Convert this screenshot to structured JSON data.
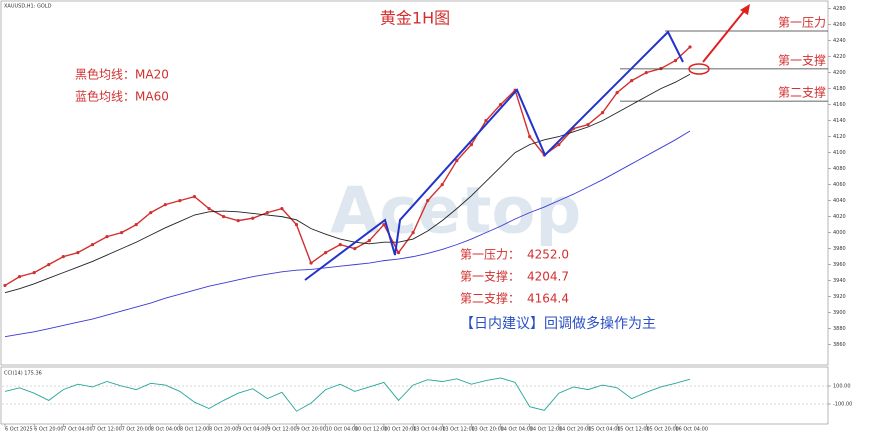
{
  "chart_data": [
    {
      "type": "line",
      "symbol": "XAUUSD,H1: GOLD",
      "title": "黄金1H图",
      "legend_texts": [
        "黑色均线：MA20",
        "蓝色均线：MA60"
      ],
      "advice": "【日内建议】回调做多操作为主",
      "categories": [
        "6 Oct 2025",
        null,
        "6 Oct 20:00",
        null,
        "7 Oct 04:00",
        null,
        "7 Oct 12:00",
        null,
        "7 Oct 20:00",
        null,
        "8 Oct 04:00",
        null,
        "8 Oct 12:00",
        null,
        "8 Oct 20:00",
        null,
        "9 Oct 04:00",
        null,
        "9 Oct 12:00",
        null,
        "9 Oct 20:00",
        null,
        "10 Oct 04:00",
        null,
        "10 Oct 12:00",
        null,
        "10 Oct 20:00",
        null,
        "13 Oct 04:00",
        null,
        "13 Oct 12:00",
        null,
        "13 Oct 20:00",
        null,
        "14 Oct 04:00",
        null,
        "14 Oct 12:00",
        null,
        "14 Oct 20:00",
        null,
        "15 Oct 04:00",
        null,
        "15 Oct 12:00",
        null,
        "15 Oct 20:00",
        null,
        "16 Oct 04:00",
        null
      ],
      "series": [
        {
          "color": "#d32f2f",
          "values": [
            3934,
            3945,
            3950,
            3960,
            3970,
            3975,
            3985,
            3995,
            4000,
            4010,
            4025,
            4035,
            4040,
            4045,
            4030,
            4020,
            4015,
            4018,
            4025,
            4030,
            4010,
            3962,
            3975,
            3985,
            3980,
            3990,
            4010,
            3975,
            4000,
            4040,
            4060,
            4090,
            4110,
            4140,
            4160,
            4178,
            4120,
            4097,
            4110,
            4130,
            4135,
            4150,
            4175,
            4190,
            4200,
            4205,
            4215,
            4232
          ]
        },
        {
          "color": "#222222",
          "values": [
            3925,
            3930,
            3936,
            3943,
            3950,
            3957,
            3964,
            3972,
            3980,
            3988,
            3997,
            4006,
            4014,
            4022,
            4026,
            4027,
            4026,
            4024,
            4022,
            4020,
            4016,
            4005,
            3998,
            3992,
            3988,
            3986,
            3988,
            3988,
            3992,
            4002,
            4015,
            4030,
            4046,
            4064,
            4082,
            4100,
            4110,
            4116,
            4120,
            4126,
            4132,
            4140,
            4150,
            4160,
            4170,
            4180,
            4188,
            4198
          ]
        },
        {
          "color": "#3a3ad6",
          "values": [
            3870,
            3873,
            3876,
            3880,
            3884,
            3888,
            3892,
            3897,
            3902,
            3907,
            3912,
            3918,
            3923,
            3928,
            3933,
            3937,
            3941,
            3945,
            3948,
            3951,
            3953,
            3954,
            3956,
            3958,
            3960,
            3962,
            3965,
            3967,
            3970,
            3974,
            3979,
            3985,
            3992,
            4000,
            4008,
            4017,
            4025,
            4032,
            4040,
            4048,
            4057,
            4066,
            4076,
            4086,
            4096,
            4106,
            4116,
            4127
          ]
        }
      ],
      "levels": [
        {
          "name": "第一压力",
          "caption": "第一压力：",
          "value": 4252,
          "value_label": "4252.0"
        },
        {
          "name": "第一支撑",
          "caption": "第一支撑：",
          "value": 4204.7,
          "value_label": "4204.7"
        },
        {
          "name": "第二支撑",
          "caption": "第二支撑：",
          "value": 4164.4,
          "value_label": "4164.4"
        }
      ],
      "ylim": [
        3850.8,
        4284.5
      ],
      "yticks": [
        3860,
        3880,
        3900,
        3920,
        3940,
        3960,
        3980,
        4000,
        4020,
        4040,
        4060,
        4080,
        4100,
        4120,
        4140,
        4160,
        4180,
        4200,
        4220,
        4240,
        4260,
        4280
      ]
    },
    {
      "type": "line",
      "title": "CCI(14) 175.36",
      "series": [
        {
          "color": "#26a69a",
          "values": [
            40,
            80,
            20,
            -60,
            60,
            120,
            90,
            150,
            100,
            60,
            130,
            110,
            40,
            -80,
            -150,
            -60,
            20,
            70,
            -40,
            30,
            -180,
            -90,
            60,
            120,
            40,
            90,
            140,
            -60,
            110,
            170,
            150,
            180,
            120,
            160,
            190,
            140,
            -130,
            -170,
            20,
            90,
            60,
            110,
            80,
            -40,
            30,
            90,
            130,
            175.36
          ]
        }
      ],
      "ylim": [
        -333,
        300
      ],
      "yticks": [
        {
          "value": 100,
          "label": "100.00"
        },
        {
          "value": -100,
          "label": "-100.00"
        }
      ]
    }
  ]
}
